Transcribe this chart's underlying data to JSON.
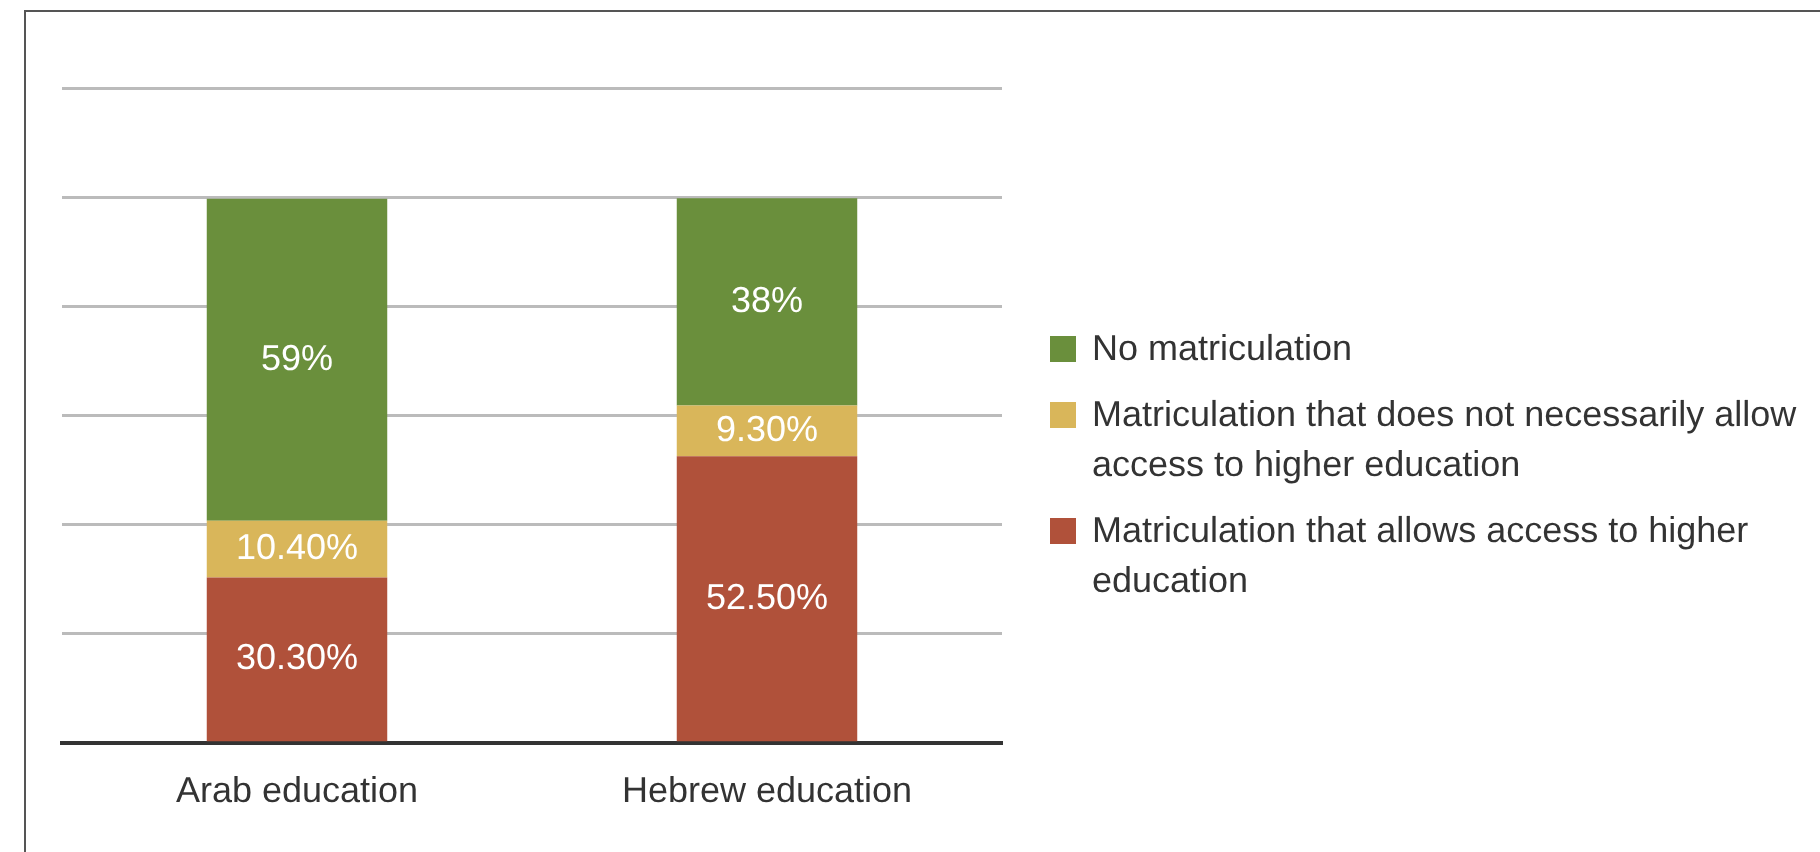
{
  "chart_data": {
    "type": "bar",
    "stacked": true,
    "categories": [
      "Arab education",
      "Hebrew education"
    ],
    "series": [
      {
        "name": "Matriculation that allows access to higher education",
        "color": "#b0513a",
        "values": [
          30.3,
          52.5
        ],
        "value_labels": [
          "30.30%",
          "52.50%"
        ]
      },
      {
        "name": "Matriculation that does not necessarily allow access to higher education",
        "color": "#d9b65a",
        "values": [
          10.4,
          9.3
        ],
        "value_labels": [
          "10.40%",
          "9.30%"
        ]
      },
      {
        "name": "No matriculation",
        "color": "#6a8f3c",
        "values": [
          59,
          38
        ],
        "value_labels": [
          "59%",
          "38%"
        ]
      }
    ],
    "ylim": [
      0,
      120
    ],
    "yticks": [
      {
        "value": 0,
        "label": null
      },
      {
        "value": 20,
        "label": null
      },
      {
        "value": 40,
        "label": null
      },
      {
        "value": 60,
        "label": null
      },
      {
        "value": 80,
        "label": null
      },
      {
        "value": 100,
        "label": null
      },
      {
        "value": 120,
        "label": null
      }
    ],
    "tick_labels": "x",
    "grid": "y",
    "legend": "right"
  }
}
